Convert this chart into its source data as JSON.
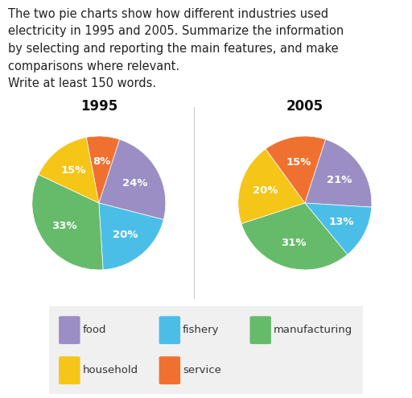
{
  "title_1995": "1995",
  "title_2005": "2005",
  "categories": [
    "food",
    "fishery",
    "manufacturing",
    "household",
    "service"
  ],
  "colors": [
    "#9b8ec4",
    "#4bbee8",
    "#66bb6a",
    "#f5c518",
    "#f07030"
  ],
  "values_1995": [
    24,
    20,
    33,
    15,
    8
  ],
  "values_2005": [
    21,
    13,
    31,
    20,
    15
  ],
  "labels_1995": [
    "24%",
    "20%",
    "33%",
    "15%",
    "8%"
  ],
  "labels_2005": [
    "21%",
    "13%",
    "31%",
    "20%",
    "15%"
  ],
  "header_line1": "The two pie charts show how different industries used",
  "header_line2": "electricity in 1995 and 2005. Summarize the information",
  "header_line3": "by selecting and reporting the main features, and make",
  "header_line4": "comparisons where relevant.",
  "header_line5": "Write at least 150 words.",
  "header_fontsize": 10.5,
  "title_fontsize": 12,
  "label_fontsize": 9.5,
  "legend_labels": [
    "food",
    "fishery",
    "manufacturing",
    "household",
    "service"
  ],
  "legend_colors": [
    "#9b8ec4",
    "#4bbee8",
    "#66bb6a",
    "#f5c518",
    "#f07030"
  ],
  "bg_color": "#ffffff",
  "startangle_1995": 72,
  "startangle_2005": 72
}
